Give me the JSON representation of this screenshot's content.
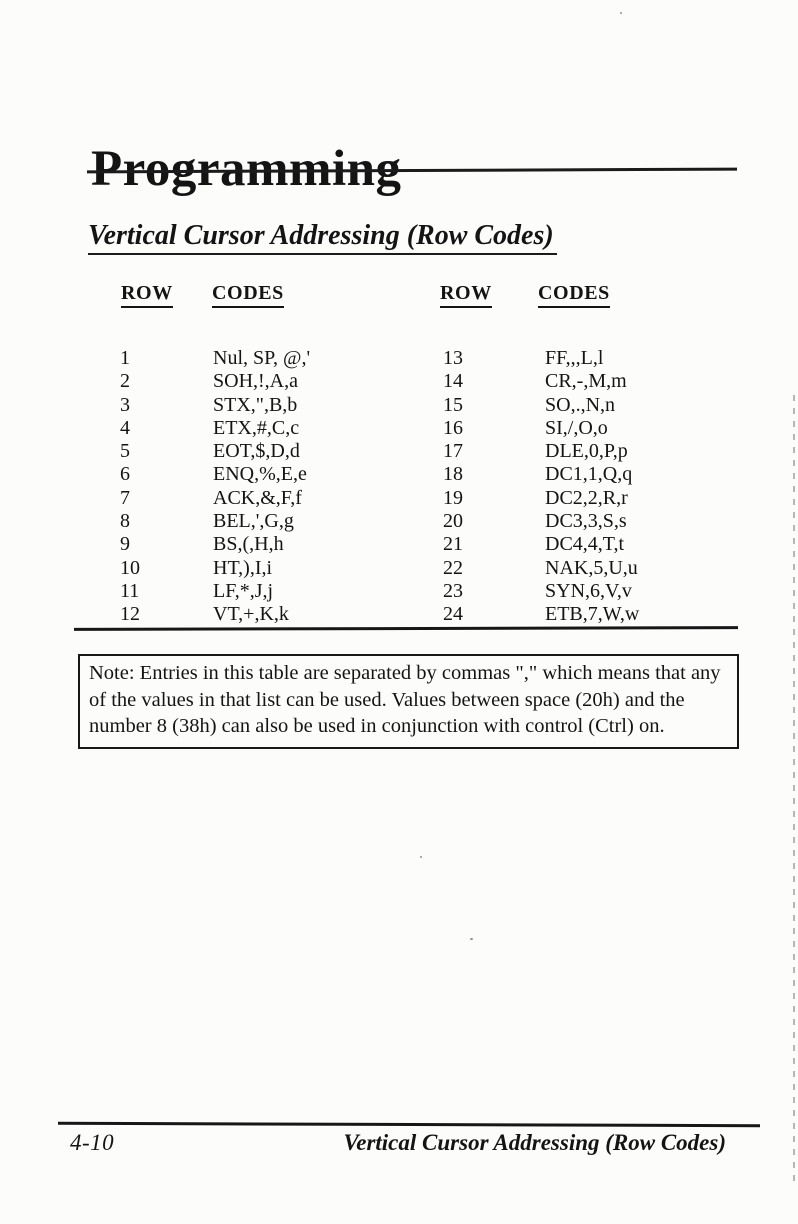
{
  "page": {
    "title": "Programming",
    "section_heading": "Vertical Cursor Addressing (Row Codes)"
  },
  "table": {
    "headers": {
      "row_left": "ROW",
      "codes_left": "CODES",
      "row_right": "ROW",
      "codes_right": "CODES"
    },
    "left_rows": [
      {
        "row": "1",
        "codes": "Nul, SP, @,'"
      },
      {
        "row": "2",
        "codes": "SOH,!,A,a"
      },
      {
        "row": "3",
        "codes": "STX,\",B,b"
      },
      {
        "row": "4",
        "codes": "ETX,#,C,c"
      },
      {
        "row": "5",
        "codes": "EOT,$,D,d"
      },
      {
        "row": "6",
        "codes": "ENQ,%,E,e"
      },
      {
        "row": "7",
        "codes": "ACK,&,F,f"
      },
      {
        "row": "8",
        "codes": "BEL,',G,g"
      },
      {
        "row": "9",
        "codes": "BS,(,H,h"
      },
      {
        "row": "10",
        "codes": "HT,),I,i"
      },
      {
        "row": "11",
        "codes": "LF,*,J,j"
      },
      {
        "row": "12",
        "codes": "VT,+,K,k"
      }
    ],
    "right_rows": [
      {
        "row": "13",
        "codes": "FF,,,L,l"
      },
      {
        "row": "14",
        "codes": "CR,-,M,m"
      },
      {
        "row": "15",
        "codes": "SO,.,N,n"
      },
      {
        "row": "16",
        "codes": "SI,/,O,o"
      },
      {
        "row": "17",
        "codes": "DLE,0,P,p"
      },
      {
        "row": "18",
        "codes": "DC1,1,Q,q"
      },
      {
        "row": "19",
        "codes": "DC2,2,R,r"
      },
      {
        "row": "20",
        "codes": "DC3,3,S,s"
      },
      {
        "row": "21",
        "codes": "DC4,4,T,t"
      },
      {
        "row": "22",
        "codes": "NAK,5,U,u"
      },
      {
        "row": "23",
        "codes": "SYN,6,V,v"
      },
      {
        "row": "24",
        "codes": "ETB,7,W,w"
      }
    ]
  },
  "note": {
    "lines": [
      "Note:  Entries in this table are separated by commas \",\" which means that any",
      "of the values in that list can be used.   Values between space (20h) and the",
      "number 8 (38h) can also be used in conjunction with control (Ctrl) on."
    ]
  },
  "footer": {
    "page_number": "4-10",
    "running_title": "Vertical Cursor Addressing (Row Codes)"
  }
}
